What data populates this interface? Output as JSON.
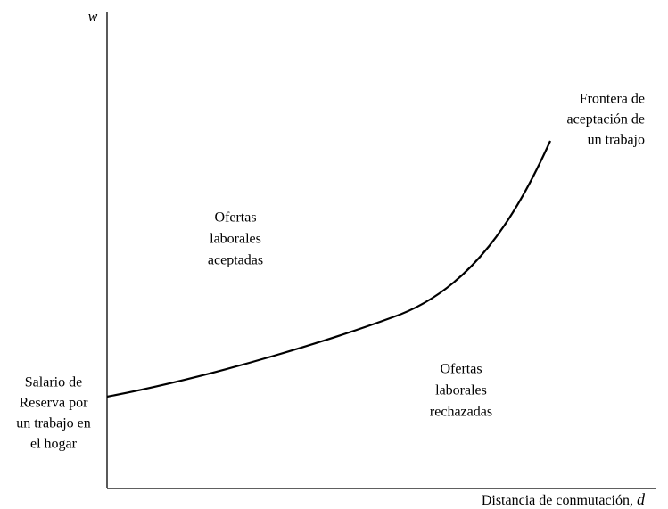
{
  "y_axis_label": "w",
  "x_axis_label": {
    "text": "Distancia de conmutación,",
    "variable": "d"
  },
  "curve_label": [
    "Frontera de",
    "aceptación de",
    "un trabajo"
  ],
  "region_above": [
    "Ofertas",
    "laborales",
    "aceptadas"
  ],
  "region_below": [
    "Ofertas",
    "laborales",
    "rechazadas"
  ],
  "intercept_label": [
    "Salario de",
    "Reserva por",
    "un trabajo en",
    "el hogar"
  ]
}
